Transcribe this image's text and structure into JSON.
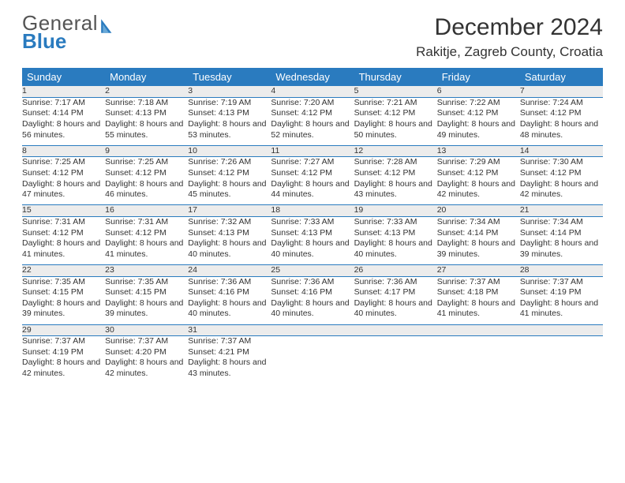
{
  "logo": {
    "word1": "General",
    "word2": "Blue"
  },
  "header": {
    "title": "December 2024",
    "location": "Rakitje, Zagreb County, Croatia"
  },
  "colors": {
    "header_bg": "#2a7bbf",
    "header_fg": "#ffffff",
    "daynum_bg": "#ececec",
    "row_divider": "#2a7bbf",
    "text": "#333333",
    "logo_gray": "#555555",
    "logo_blue": "#2a7bbf",
    "page_bg": "#ffffff"
  },
  "typography": {
    "title_fontsize": 30,
    "location_fontsize": 17,
    "weekday_fontsize": 13,
    "daynum_fontsize": 12,
    "cell_fontsize": 10.5,
    "logo_fontsize": 26
  },
  "layout": {
    "columns": 7,
    "rows": 5,
    "first_day_column": 0
  },
  "weekdays": [
    "Sunday",
    "Monday",
    "Tuesday",
    "Wednesday",
    "Thursday",
    "Friday",
    "Saturday"
  ],
  "days": [
    {
      "n": 1,
      "sr": "7:17 AM",
      "ss": "4:14 PM",
      "dl": "8 hours and 56 minutes."
    },
    {
      "n": 2,
      "sr": "7:18 AM",
      "ss": "4:13 PM",
      "dl": "8 hours and 55 minutes."
    },
    {
      "n": 3,
      "sr": "7:19 AM",
      "ss": "4:13 PM",
      "dl": "8 hours and 53 minutes."
    },
    {
      "n": 4,
      "sr": "7:20 AM",
      "ss": "4:12 PM",
      "dl": "8 hours and 52 minutes."
    },
    {
      "n": 5,
      "sr": "7:21 AM",
      "ss": "4:12 PM",
      "dl": "8 hours and 50 minutes."
    },
    {
      "n": 6,
      "sr": "7:22 AM",
      "ss": "4:12 PM",
      "dl": "8 hours and 49 minutes."
    },
    {
      "n": 7,
      "sr": "7:24 AM",
      "ss": "4:12 PM",
      "dl": "8 hours and 48 minutes."
    },
    {
      "n": 8,
      "sr": "7:25 AM",
      "ss": "4:12 PM",
      "dl": "8 hours and 47 minutes."
    },
    {
      "n": 9,
      "sr": "7:25 AM",
      "ss": "4:12 PM",
      "dl": "8 hours and 46 minutes."
    },
    {
      "n": 10,
      "sr": "7:26 AM",
      "ss": "4:12 PM",
      "dl": "8 hours and 45 minutes."
    },
    {
      "n": 11,
      "sr": "7:27 AM",
      "ss": "4:12 PM",
      "dl": "8 hours and 44 minutes."
    },
    {
      "n": 12,
      "sr": "7:28 AM",
      "ss": "4:12 PM",
      "dl": "8 hours and 43 minutes."
    },
    {
      "n": 13,
      "sr": "7:29 AM",
      "ss": "4:12 PM",
      "dl": "8 hours and 42 minutes."
    },
    {
      "n": 14,
      "sr": "7:30 AM",
      "ss": "4:12 PM",
      "dl": "8 hours and 42 minutes."
    },
    {
      "n": 15,
      "sr": "7:31 AM",
      "ss": "4:12 PM",
      "dl": "8 hours and 41 minutes."
    },
    {
      "n": 16,
      "sr": "7:31 AM",
      "ss": "4:12 PM",
      "dl": "8 hours and 41 minutes."
    },
    {
      "n": 17,
      "sr": "7:32 AM",
      "ss": "4:13 PM",
      "dl": "8 hours and 40 minutes."
    },
    {
      "n": 18,
      "sr": "7:33 AM",
      "ss": "4:13 PM",
      "dl": "8 hours and 40 minutes."
    },
    {
      "n": 19,
      "sr": "7:33 AM",
      "ss": "4:13 PM",
      "dl": "8 hours and 40 minutes."
    },
    {
      "n": 20,
      "sr": "7:34 AM",
      "ss": "4:14 PM",
      "dl": "8 hours and 39 minutes."
    },
    {
      "n": 21,
      "sr": "7:34 AM",
      "ss": "4:14 PM",
      "dl": "8 hours and 39 minutes."
    },
    {
      "n": 22,
      "sr": "7:35 AM",
      "ss": "4:15 PM",
      "dl": "8 hours and 39 minutes."
    },
    {
      "n": 23,
      "sr": "7:35 AM",
      "ss": "4:15 PM",
      "dl": "8 hours and 39 minutes."
    },
    {
      "n": 24,
      "sr": "7:36 AM",
      "ss": "4:16 PM",
      "dl": "8 hours and 40 minutes."
    },
    {
      "n": 25,
      "sr": "7:36 AM",
      "ss": "4:16 PM",
      "dl": "8 hours and 40 minutes."
    },
    {
      "n": 26,
      "sr": "7:36 AM",
      "ss": "4:17 PM",
      "dl": "8 hours and 40 minutes."
    },
    {
      "n": 27,
      "sr": "7:37 AM",
      "ss": "4:18 PM",
      "dl": "8 hours and 41 minutes."
    },
    {
      "n": 28,
      "sr": "7:37 AM",
      "ss": "4:19 PM",
      "dl": "8 hours and 41 minutes."
    },
    {
      "n": 29,
      "sr": "7:37 AM",
      "ss": "4:19 PM",
      "dl": "8 hours and 42 minutes."
    },
    {
      "n": 30,
      "sr": "7:37 AM",
      "ss": "4:20 PM",
      "dl": "8 hours and 42 minutes."
    },
    {
      "n": 31,
      "sr": "7:37 AM",
      "ss": "4:21 PM",
      "dl": "8 hours and 43 minutes."
    }
  ],
  "labels": {
    "sunrise_prefix": "Sunrise: ",
    "sunset_prefix": "Sunset: ",
    "daylight_prefix": "Daylight: "
  }
}
